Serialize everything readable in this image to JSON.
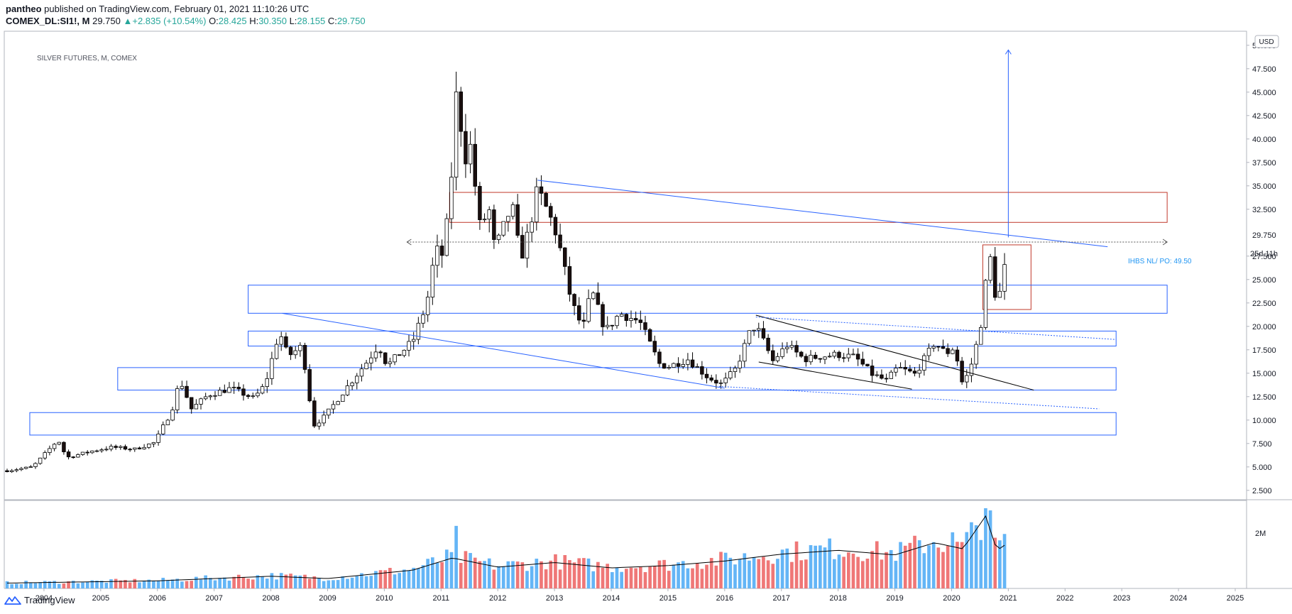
{
  "header": {
    "user": "pantheo",
    "published_text": " published on TradingView.com, February 01, 2021 11:10:26 UTC"
  },
  "symbol_line": {
    "symbol": "COMEX_DL:SI1!, M",
    "last": "29.750",
    "change": "+2.835 (+10.54%)",
    "o_label": "O:",
    "o": "28.425",
    "h_label": "H:",
    "h": "30.350",
    "l_label": "L:",
    "l": "28.155",
    "c_label": "C:",
    "c": "29.750"
  },
  "footer": {
    "brand": "TradingView",
    "icon": "tradingview-logo-icon"
  },
  "colors": {
    "up_body": "#ffffff",
    "down_body": "#1a0f0f",
    "zone_red": "#c0392b",
    "zone_blue": "#2962ff",
    "line_blue": "#2962ff",
    "vol_up": "#64b5f6",
    "vol_down": "#ef7777",
    "annotation": "#2196f3"
  },
  "chart_data": {
    "type": "candlestick",
    "title": "SILVER FUTURES, M, COMEX",
    "currency_label": "USD",
    "price_axis_ticks": [
      "50.000",
      "47.500",
      "45.000",
      "42.500",
      "40.000",
      "37.500",
      "35.000",
      "32.500",
      "29.750",
      "27.500",
      "25.000",
      "22.500",
      "20.000",
      "17.500",
      "15.000",
      "12.500",
      "10.000",
      "7.500",
      "5.000",
      "2.500"
    ],
    "price_axis_ticks_numeric": [
      50,
      47.5,
      45,
      42.5,
      40,
      37.5,
      35,
      32.5,
      27.5,
      25,
      22.5,
      20,
      17.5,
      15,
      12.5,
      10,
      7.5,
      5,
      2.5
    ],
    "ylim": [
      1.5,
      51.5
    ],
    "last_price": 29.75,
    "last_price_label": "29.750",
    "countdown_label": "25d 11h",
    "annotation": "IHBS NL/ PO: 49.50",
    "x_ticks": [
      "2004",
      "2005",
      "2006",
      "2007",
      "2008",
      "2009",
      "2010",
      "2011",
      "2012",
      "2013",
      "2014",
      "2015",
      "2016",
      "2017",
      "2018",
      "2019",
      "2020",
      "2021",
      "2022",
      "2023",
      "2024",
      "2025"
    ],
    "x_ticks_numeric": [
      2004,
      2005,
      2006,
      2007,
      2008,
      2009,
      2010,
      2011,
      2012,
      2013,
      2014,
      2015,
      2016,
      2017,
      2018,
      2019,
      2020,
      2021,
      2022,
      2023,
      2024,
      2025
    ],
    "xlim": [
      2003.3,
      2025.2
    ],
    "anchors": [
      [
        2003.35,
        4.6
      ],
      [
        2003.8,
        5.0
      ],
      [
        2004.25,
        7.9
      ],
      [
        2004.4,
        6.0
      ],
      [
        2004.85,
        6.7
      ],
      [
        2005.2,
        7.1
      ],
      [
        2005.6,
        6.9
      ],
      [
        2005.95,
        7.6
      ],
      [
        2006.25,
        11.0
      ],
      [
        2006.4,
        14.3
      ],
      [
        2006.6,
        11.2
      ],
      [
        2006.9,
        12.7
      ],
      [
        2007.3,
        13.4
      ],
      [
        2007.7,
        12.3
      ],
      [
        2007.9,
        13.8
      ],
      [
        2008.15,
        19.5
      ],
      [
        2008.3,
        16.8
      ],
      [
        2008.55,
        17.9
      ],
      [
        2008.75,
        9.4
      ],
      [
        2008.95,
        10.4
      ],
      [
        2009.3,
        13.2
      ],
      [
        2009.7,
        16.3
      ],
      [
        2009.9,
        18.0
      ],
      [
        2010.05,
        15.8
      ],
      [
        2010.5,
        18.4
      ],
      [
        2010.75,
        22.5
      ],
      [
        2010.9,
        28.2
      ],
      [
        2011.05,
        27.5
      ],
      [
        2011.2,
        37.3
      ],
      [
        2011.3,
        48.1
      ],
      [
        2011.38,
        37.4
      ],
      [
        2011.55,
        39.6
      ],
      [
        2011.65,
        30.5
      ],
      [
        2011.85,
        32.3
      ],
      [
        2011.95,
        28.1
      ],
      [
        2012.25,
        33.0
      ],
      [
        2012.4,
        27.1
      ],
      [
        2012.55,
        30.3
      ],
      [
        2012.7,
        34.6
      ],
      [
        2012.9,
        32.0
      ],
      [
        2013.05,
        29.6
      ],
      [
        2013.3,
        22.6
      ],
      [
        2013.5,
        19.7
      ],
      [
        2013.65,
        23.9
      ],
      [
        2013.9,
        19.5
      ],
      [
        2014.15,
        21.4
      ],
      [
        2014.5,
        20.5
      ],
      [
        2014.85,
        16.0
      ],
      [
        2015.0,
        15.7
      ],
      [
        2015.35,
        16.5
      ],
      [
        2015.7,
        14.6
      ],
      [
        2015.95,
        13.8
      ],
      [
        2016.2,
        15.5
      ],
      [
        2016.45,
        19.5
      ],
      [
        2016.55,
        20.1
      ],
      [
        2016.85,
        16.3
      ],
      [
        2017.1,
        18.0
      ],
      [
        2017.4,
        16.5
      ],
      [
        2017.7,
        16.8
      ],
      [
        2018.0,
        17.0
      ],
      [
        2018.3,
        16.7
      ],
      [
        2018.6,
        14.9
      ],
      [
        2018.85,
        14.2
      ],
      [
        2019.05,
        15.6
      ],
      [
        2019.35,
        14.9
      ],
      [
        2019.55,
        16.8
      ],
      [
        2019.7,
        18.3
      ],
      [
        2019.9,
        17.1
      ],
      [
        2020.05,
        17.8
      ],
      [
        2020.2,
        13.6
      ],
      [
        2020.35,
        16.0
      ],
      [
        2020.5,
        19.5
      ],
      [
        2020.6,
        24.5
      ],
      [
        2020.66,
        28.5
      ],
      [
        2020.75,
        23.5
      ],
      [
        2020.85,
        23.6
      ],
      [
        2020.95,
        26.7
      ],
      [
        2021.0,
        29.75
      ]
    ],
    "volume_axis_label": "2M",
    "volume_anchors": [
      [
        2003.3,
        0.07
      ],
      [
        2006.0,
        0.1
      ],
      [
        2008.0,
        0.16
      ],
      [
        2009.0,
        0.13
      ],
      [
        2010.5,
        0.24
      ],
      [
        2011.2,
        0.4
      ],
      [
        2012.0,
        0.28
      ],
      [
        2013.0,
        0.34
      ],
      [
        2014.0,
        0.27
      ],
      [
        2015.0,
        0.3
      ],
      [
        2016.0,
        0.36
      ],
      [
        2017.0,
        0.45
      ],
      [
        2018.0,
        0.5
      ],
      [
        2019.0,
        0.44
      ],
      [
        2019.7,
        0.6
      ],
      [
        2020.2,
        0.52
      ],
      [
        2020.6,
        0.95
      ],
      [
        2020.8,
        0.5
      ],
      [
        2021.0,
        0.6
      ]
    ],
    "volume_spikes": [
      [
        2020.6,
        1.0
      ],
      [
        2011.3,
        0.78
      ],
      [
        2020.05,
        0.7
      ]
    ],
    "zones": [
      {
        "color": "red",
        "x": [
          2011.15,
          2023.8
        ],
        "y": [
          31.1,
          34.3
        ]
      },
      {
        "color": "red",
        "x": [
          2020.55,
          2021.4
        ],
        "y": [
          21.8,
          28.7
        ]
      },
      {
        "color": "blue",
        "x": [
          2007.6,
          2023.8
        ],
        "y": [
          21.4,
          24.4
        ]
      },
      {
        "color": "blue",
        "x": [
          2007.6,
          2022.9
        ],
        "y": [
          17.9,
          19.5
        ]
      },
      {
        "color": "blue",
        "x": [
          2005.3,
          2022.9
        ],
        "y": [
          13.2,
          15.6
        ]
      },
      {
        "color": "blue",
        "x": [
          2003.75,
          2022.9
        ],
        "y": [
          8.4,
          10.8
        ]
      }
    ],
    "trendlines": [
      {
        "style": "solid",
        "color": "blue",
        "from": [
          2012.7,
          35.6
        ],
        "to": [
          2022.75,
          28.5
        ]
      },
      {
        "style": "solid",
        "color": "blue",
        "from": [
          2008.2,
          21.4
        ],
        "to": [
          2016.0,
          13.4
        ]
      },
      {
        "style": "solid",
        "color": "black",
        "from": [
          2016.55,
          21.2
        ],
        "to": [
          2021.45,
          13.2
        ]
      },
      {
        "style": "solid",
        "color": "black",
        "from": [
          2016.6,
          16.2
        ],
        "to": [
          2019.3,
          13.3
        ]
      },
      {
        "style": "dotted",
        "color": "blue",
        "from": [
          2016.55,
          21.0
        ],
        "to": [
          2022.9,
          18.6
        ]
      },
      {
        "style": "dotted",
        "color": "blue",
        "from": [
          2015.9,
          13.6
        ],
        "to": [
          2022.6,
          11.2
        ]
      },
      {
        "style": "dotted",
        "color": "gray",
        "from": [
          2010.4,
          29.0
        ],
        "to": [
          2023.8,
          29.0
        ]
      }
    ],
    "target_arrow": {
      "x": 2021.0,
      "from": 29.5,
      "to": 49.5
    }
  }
}
